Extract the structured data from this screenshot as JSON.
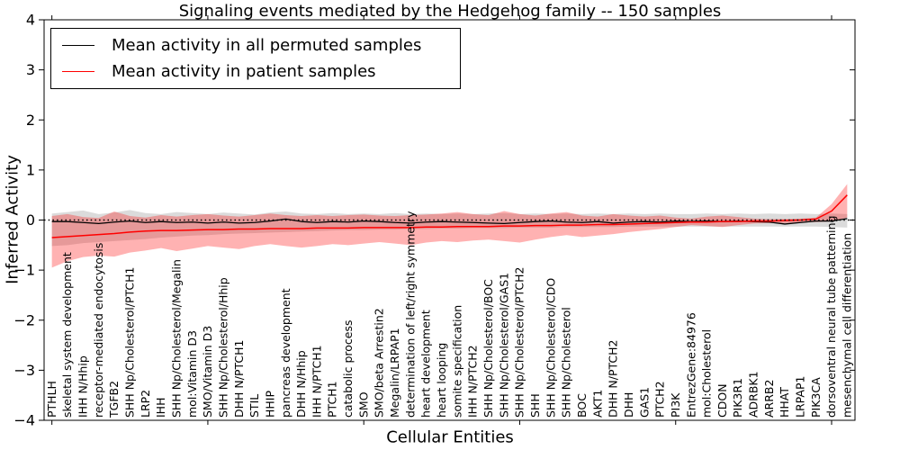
{
  "chart_data": {
    "type": "line",
    "title": "Signaling events mediated by the Hedgehog family -- 150 samples",
    "xlabel": "Cellular Entities",
    "ylabel": "Inferred Activity",
    "ylim": [
      -4,
      4
    ],
    "yticks": [
      4,
      3,
      2,
      1,
      0,
      -1,
      -2,
      -3,
      -4
    ],
    "ytick_labels": [
      "4",
      "3",
      "2",
      "1",
      "0",
      "−1",
      "−2",
      "−3",
      "−4"
    ],
    "xtick_every": 10,
    "grid": false,
    "legend_position": "upper left",
    "reference_line": {
      "y": 0,
      "style": "dotted",
      "color": "#000000"
    },
    "categories": [
      "PTHLH",
      "skeletal system development",
      "IHH N/Hhip",
      "receptor-mediated endocytosis",
      "TGFB2",
      "SHH Np/Cholesterol/PTCH1",
      "LRP2",
      "IHH",
      "SHH Np/Cholesterol/Megalin",
      "mol:Vitamin D3",
      "SMO/Vitamin D3",
      "SHH Np/Cholesterol/Hhip",
      "DHH N/PTCH1",
      "STIL",
      "HHIP",
      "pancreas development",
      "DHH N/Hhip",
      "IHH N/PTCH1",
      "PTCH1",
      "catabolic process",
      "SMO",
      "SMO/beta Arrestin2",
      "Megalin/LRPAP1",
      "determination of left/right symmetry",
      "heart development",
      "heart looping",
      "somite specification",
      "IHH N/PTCH2",
      "SHH Np/Cholesterol/BOC",
      "SHH Np/Cholesterol/GAS1",
      "SHH Np/Cholesterol/PTCH2",
      "SHH",
      "SHH Np/Cholesterol/CDO",
      "SHH Np/Cholesterol",
      "BOC",
      "AKT1",
      "DHH N/PTCH2",
      "DHH",
      "GAS1",
      "PTCH2",
      "PI3K",
      "EntrezGene:84976",
      "mol:Cholesterol",
      "CDON",
      "PIK3R1",
      "ADRBK1",
      "ARRB2",
      "HHAT",
      "LRPAP1",
      "PIK3CA",
      "dorsoventral neural tube patterning",
      "mesenchymal cell differentiation"
    ],
    "series": [
      {
        "name": "Mean activity in all permuted samples",
        "color": "#000000",
        "values": [
          -0.03,
          -0.03,
          -0.05,
          -0.07,
          -0.04,
          -0.02,
          -0.05,
          -0.03,
          -0.05,
          -0.04,
          -0.06,
          -0.04,
          -0.06,
          -0.05,
          -0.02,
          0.02,
          -0.03,
          -0.05,
          -0.03,
          -0.04,
          -0.02,
          -0.03,
          -0.05,
          -0.06,
          -0.04,
          -0.03,
          -0.04,
          -0.05,
          -0.06,
          -0.07,
          -0.05,
          -0.03,
          -0.02,
          -0.04,
          -0.05,
          -0.03,
          -0.06,
          -0.04,
          -0.03,
          -0.04,
          -0.02,
          -0.03,
          -0.02,
          -0.03,
          -0.02,
          -0.03,
          -0.04,
          -0.08,
          -0.05,
          -0.02,
          -0.02,
          0.03
        ]
      },
      {
        "name": "Mean activity in patient samples",
        "color": "#ff0000",
        "values": [
          -0.35,
          -0.33,
          -0.31,
          -0.29,
          -0.27,
          -0.24,
          -0.22,
          -0.21,
          -0.21,
          -0.2,
          -0.19,
          -0.19,
          -0.18,
          -0.18,
          -0.17,
          -0.17,
          -0.17,
          -0.16,
          -0.16,
          -0.16,
          -0.15,
          -0.15,
          -0.15,
          -0.15,
          -0.14,
          -0.14,
          -0.13,
          -0.13,
          -0.13,
          -0.12,
          -0.12,
          -0.11,
          -0.11,
          -0.1,
          -0.1,
          -0.09,
          -0.09,
          -0.08,
          -0.07,
          -0.06,
          -0.05,
          -0.04,
          -0.04,
          -0.03,
          -0.03,
          -0.02,
          -0.02,
          -0.01,
          0.0,
          0.02,
          0.18,
          0.5
        ]
      }
    ],
    "bands": [
      {
        "name": "permuted samples range",
        "color": "#999999",
        "opacity": 0.35,
        "upper": [
          0.13,
          0.16,
          0.19,
          0.12,
          0.15,
          0.2,
          0.14,
          0.12,
          0.16,
          0.14,
          0.12,
          0.15,
          0.13,
          0.11,
          0.15,
          0.17,
          0.13,
          0.12,
          0.14,
          0.12,
          0.13,
          0.12,
          0.14,
          0.12,
          0.13,
          0.12,
          0.13,
          0.12,
          0.13,
          0.14,
          0.12,
          0.13,
          0.12,
          0.13,
          0.12,
          0.13,
          0.12,
          0.13,
          0.12,
          0.13,
          0.12,
          0.12,
          0.13,
          0.12,
          0.13,
          0.12,
          0.13,
          0.12,
          0.13,
          0.12,
          0.13,
          0.12
        ],
        "lower": [
          -0.52,
          -0.5,
          -0.46,
          -0.44,
          -0.42,
          -0.4,
          -0.38,
          -0.35,
          -0.33,
          -0.31,
          -0.3,
          -0.28,
          -0.27,
          -0.26,
          -0.25,
          -0.24,
          -0.23,
          -0.22,
          -0.21,
          -0.2,
          -0.2,
          -0.19,
          -0.19,
          -0.18,
          -0.18,
          -0.17,
          -0.17,
          -0.16,
          -0.16,
          -0.16,
          -0.15,
          -0.15,
          -0.15,
          -0.14,
          -0.14,
          -0.14,
          -0.14,
          -0.13,
          -0.13,
          -0.13,
          -0.13,
          -0.13,
          -0.13,
          -0.13,
          -0.13,
          -0.13,
          -0.13,
          -0.13,
          -0.13,
          -0.13,
          -0.14,
          -0.15
        ]
      },
      {
        "name": "patient samples range",
        "color": "#ff0000",
        "opacity": 0.3,
        "upper": [
          0.08,
          0.12,
          0.06,
          0.04,
          0.17,
          0.08,
          0.05,
          0.1,
          0.07,
          0.1,
          0.12,
          0.09,
          0.07,
          0.1,
          0.13,
          0.1,
          0.08,
          0.1,
          0.08,
          0.1,
          0.11,
          0.09,
          0.08,
          0.1,
          0.11,
          0.13,
          0.16,
          0.12,
          0.1,
          0.18,
          0.12,
          0.09,
          0.13,
          0.16,
          0.09,
          0.07,
          0.12,
          0.09,
          0.07,
          0.09,
          0.05,
          0.03,
          0.07,
          0.09,
          0.06,
          0.03,
          0.02,
          0.02,
          0.03,
          0.05,
          0.32,
          0.72
        ],
        "lower": [
          -0.95,
          -0.82,
          -0.74,
          -0.71,
          -0.73,
          -0.65,
          -0.61,
          -0.56,
          -0.62,
          -0.57,
          -0.52,
          -0.55,
          -0.58,
          -0.52,
          -0.48,
          -0.52,
          -0.55,
          -0.52,
          -0.48,
          -0.5,
          -0.47,
          -0.44,
          -0.47,
          -0.5,
          -0.45,
          -0.42,
          -0.44,
          -0.41,
          -0.39,
          -0.42,
          -0.45,
          -0.39,
          -0.34,
          -0.3,
          -0.34,
          -0.31,
          -0.28,
          -0.24,
          -0.21,
          -0.18,
          -0.14,
          -0.1,
          -0.12,
          -0.14,
          -0.1,
          -0.07,
          -0.06,
          -0.06,
          -0.05,
          -0.04,
          -0.03,
          0.05
        ]
      }
    ]
  }
}
